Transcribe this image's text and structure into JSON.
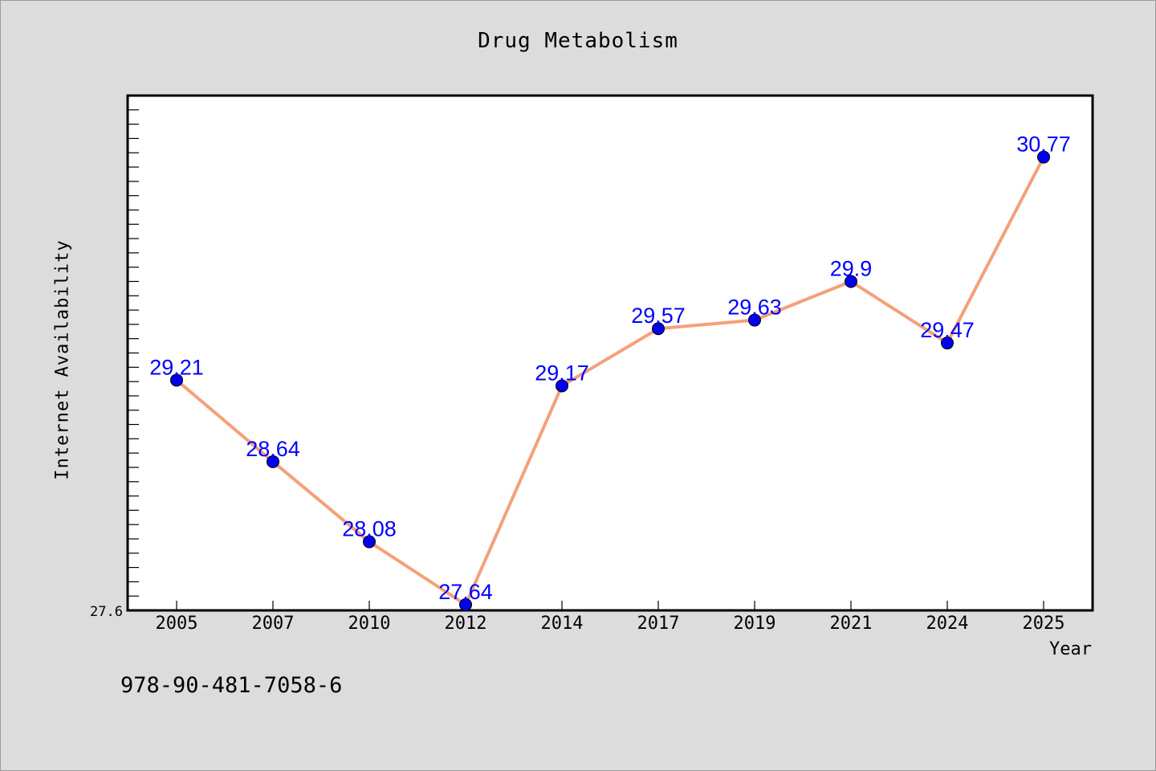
{
  "chart_data": {
    "type": "line",
    "title": "Drug Metabolism",
    "xlabel": "Year",
    "ylabel": "Internet Availability",
    "categories": [
      "2005",
      "2007",
      "2010",
      "2012",
      "2014",
      "2017",
      "2019",
      "2021",
      "2024",
      "2025"
    ],
    "series": [
      {
        "values": [
          29.21,
          28.64,
          28.08,
          27.64,
          29.17,
          29.57,
          29.63,
          29.9,
          29.47,
          30.77
        ],
        "data_labels": [
          "29.21",
          "28.64",
          "28.08",
          "27.64",
          "29.17",
          "29.57",
          "29.63",
          "29.9",
          "29.47",
          "30.77"
        ]
      }
    ],
    "y_tick_labels": [
      "27.6"
    ],
    "ylim": [
      27.6,
      31.2
    ],
    "grid": false,
    "legend": "none",
    "colors": {
      "line": "#f4a07a",
      "marker": "#0000ee",
      "label": "#0000ff"
    }
  },
  "footer": {
    "id_text": "978-90-481-7058-6"
  }
}
